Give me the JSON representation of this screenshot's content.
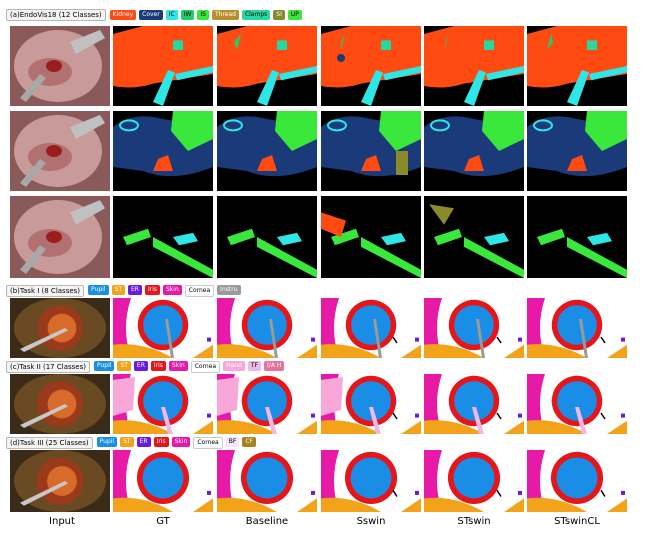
{
  "sections": [
    {
      "id": "endovis",
      "title": "(a)EndoVis18 (12 Classes)",
      "legend": [
        {
          "label": "Kidney",
          "color": "#ff4a12",
          "text": "#ffffff"
        },
        {
          "label": "Cover",
          "color": "#1a3a7a",
          "text": "#ffffff"
        },
        {
          "label": "IC",
          "color": "#2ee6e6",
          "text": "#000000"
        },
        {
          "label": "IW",
          "color": "#1ecf6a",
          "text": "#000000"
        },
        {
          "label": "IS",
          "color": "#39e83a",
          "text": "#000000"
        },
        {
          "label": "Thread",
          "color": "#b8902a",
          "text": "#ffffff"
        },
        {
          "label": "Clamps",
          "color": "#25d9a0",
          "text": "#000000"
        },
        {
          "label": "SI",
          "color": "#8a8a2a",
          "text": "#ffffff"
        },
        {
          "label": "UP",
          "color": "#3ee63e",
          "text": "#000000"
        }
      ]
    },
    {
      "id": "task1",
      "title": "(b)Task I (8 Classes)",
      "legend": [
        {
          "label": "Pupil",
          "color": "#1a8ee6",
          "text": "#ffffff"
        },
        {
          "label": "ST",
          "color": "#f2a31a",
          "text": "#ffffff"
        },
        {
          "label": "ER",
          "color": "#6a1ae6",
          "text": "#ffffff"
        },
        {
          "label": "Iris",
          "color": "#e6151a",
          "text": "#ffffff"
        },
        {
          "label": "Skin",
          "color": "#e61aa6",
          "text": "#ffffff"
        },
        {
          "label": "Cornea",
          "color": "#ffffff",
          "text": "#000000"
        },
        {
          "label": "Instru",
          "color": "#9a9a9a",
          "text": "#ffffff"
        }
      ]
    },
    {
      "id": "task2",
      "title": "(c)Task II (17 Classes)",
      "legend": [
        {
          "label": "Pupil",
          "color": "#1a8ee6",
          "text": "#ffffff"
        },
        {
          "label": "ST",
          "color": "#f2a31a",
          "text": "#ffffff"
        },
        {
          "label": "ER",
          "color": "#6a1ae6",
          "text": "#ffffff"
        },
        {
          "label": "Iris",
          "color": "#e6151a",
          "text": "#ffffff"
        },
        {
          "label": "Skin",
          "color": "#e61aa6",
          "text": "#ffffff"
        },
        {
          "label": "Cornea",
          "color": "#ffffff",
          "text": "#000000"
        },
        {
          "label": "Hand",
          "color": "#f7a8d8",
          "text": "#ffffff"
        },
        {
          "label": "TF",
          "color": "#f0b8e6",
          "text": "#000000"
        },
        {
          "label": "I/A H",
          "color": "#e8739a",
          "text": "#ffffff"
        }
      ]
    },
    {
      "id": "task3",
      "title": "(d)Task III (25 Classes)",
      "legend": [
        {
          "label": "Pupil",
          "color": "#1a8ee6",
          "text": "#ffffff"
        },
        {
          "label": "ST",
          "color": "#f2a31a",
          "text": "#ffffff"
        },
        {
          "label": "ER",
          "color": "#6a1ae6",
          "text": "#ffffff"
        },
        {
          "label": "Iris",
          "color": "#e6151a",
          "text": "#ffffff"
        },
        {
          "label": "Skin",
          "color": "#e61aa6",
          "text": "#ffffff"
        },
        {
          "label": "Cornea",
          "color": "#ffffff",
          "text": "#000000"
        },
        {
          "label": "BF",
          "color": "#f2e6f8",
          "text": "#000000"
        },
        {
          "label": "CF",
          "color": "#a8821a",
          "text": "#ffffff"
        }
      ]
    }
  ],
  "columns": [
    "Input",
    "GT",
    "Baseline",
    "Sswin",
    "STswin",
    "STswinCL"
  ]
}
